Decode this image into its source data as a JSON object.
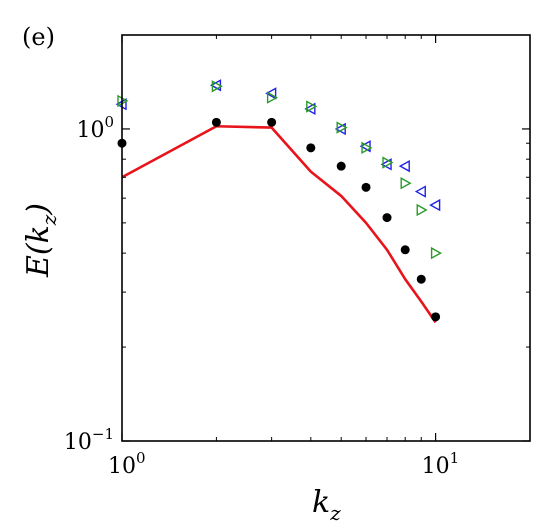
{
  "chart_data": {
    "type": "scatter",
    "panel_label": "(e)",
    "xlabel": {
      "main": "k",
      "sub": "z"
    },
    "ylabel": {
      "main": "E(k",
      "sub": "z",
      "close": ")"
    },
    "x_scale": "log",
    "y_scale": "log",
    "xlim": [
      1,
      20
    ],
    "ylim": [
      0.1,
      2
    ],
    "x_ticks": [
      {
        "value": 1,
        "base": "10",
        "exp": "0"
      },
      {
        "value": 10,
        "base": "10",
        "exp": "1"
      }
    ],
    "y_ticks": [
      {
        "value": 0.1,
        "base": "10",
        "exp": "−1"
      },
      {
        "value": 1,
        "base": "10",
        "exp": "0"
      }
    ],
    "grid": false,
    "series": [
      {
        "style": "line",
        "color": "#e8141b",
        "x": [
          1,
          2,
          3,
          4,
          5,
          6,
          7,
          8,
          9,
          10
        ],
        "y": [
          0.7,
          1.02,
          1.01,
          0.73,
          0.61,
          0.5,
          0.41,
          0.33,
          0.28,
          0.24
        ]
      },
      {
        "style": "filled-circle",
        "color": "#000000",
        "x": [
          1,
          2,
          3,
          4,
          5,
          6,
          7,
          8,
          9,
          10
        ],
        "y": [
          0.9,
          1.05,
          1.05,
          0.87,
          0.76,
          0.65,
          0.52,
          0.41,
          0.33,
          0.25
        ]
      },
      {
        "style": "triangle-left",
        "color": "#1f22e6",
        "x": [
          1,
          2,
          3,
          4,
          5,
          6,
          7,
          8,
          9,
          10
        ],
        "y": [
          1.2,
          1.38,
          1.3,
          1.16,
          1.0,
          0.88,
          0.77,
          0.76,
          0.63,
          0.57
        ]
      },
      {
        "style": "triangle-right",
        "color": "#2a9a2a",
        "x": [
          1,
          2,
          3,
          4,
          5,
          6,
          7,
          8,
          9,
          10
        ],
        "y": [
          1.23,
          1.37,
          1.26,
          1.18,
          1.01,
          0.87,
          0.78,
          0.67,
          0.55,
          0.4
        ]
      }
    ]
  }
}
